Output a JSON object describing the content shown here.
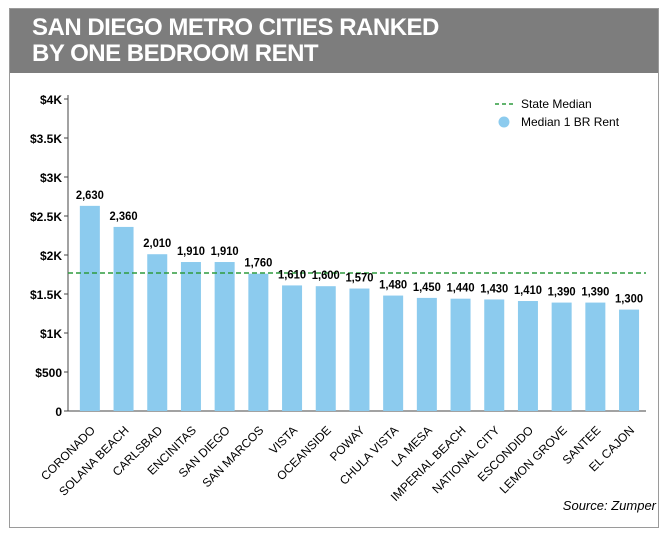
{
  "title": "SAN DIEGO METRO CITIES RANKED\nBY ONE BEDROOM RENT",
  "source": "Source: Zumper",
  "chart_data": {
    "type": "bar",
    "title": "SAN DIEGO METRO CITIES RANKED BY ONE BEDROOM RENT",
    "categories": [
      "CORONADO",
      "SOLANA BEACH",
      "CARLSBAD",
      "ENCINITAS",
      "SAN DIEGO",
      "SAN MARCOS",
      "VISTA",
      "OCEANSIDE",
      "POWAY",
      "CHULA VISTA",
      "LA MESA",
      "IMPERIAL BEACH",
      "NATIONAL CITY",
      "ESCONDIDO",
      "LEMON GROVE",
      "SANTEE",
      "EL CAJON"
    ],
    "series": [
      {
        "name": "Median 1 BR Rent",
        "values": [
          2630,
          2360,
          2010,
          1910,
          1910,
          1760,
          1610,
          1600,
          1570,
          1480,
          1450,
          1440,
          1430,
          1410,
          1390,
          1390,
          1300
        ],
        "labels": [
          "2,630",
          "2,360",
          "2,010",
          "1,910",
          "1,910",
          "1,760",
          "1,610",
          "1,600",
          "1,570",
          "1,480",
          "1,450",
          "1,440",
          "1,430",
          "1,410",
          "1,390",
          "1,390",
          "1,300"
        ]
      }
    ],
    "reference_line": {
      "name": "State Median",
      "value": 1770
    },
    "ylim": [
      0,
      4000
    ],
    "yticks": [
      0,
      500,
      1000,
      1500,
      2000,
      2500,
      3000,
      3500,
      4000
    ],
    "ytick_labels": [
      "0",
      "$500",
      "$1K",
      "$1.5K",
      "$2K",
      "$2.5K",
      "$3K",
      "$3.5K",
      "$4K"
    ],
    "grid": false,
    "legend": "top-right",
    "colors": {
      "bar": "#8ccbee",
      "reference": "#2e9b3e",
      "title_bar": "#7d7d7d",
      "axis": "#444444"
    }
  }
}
